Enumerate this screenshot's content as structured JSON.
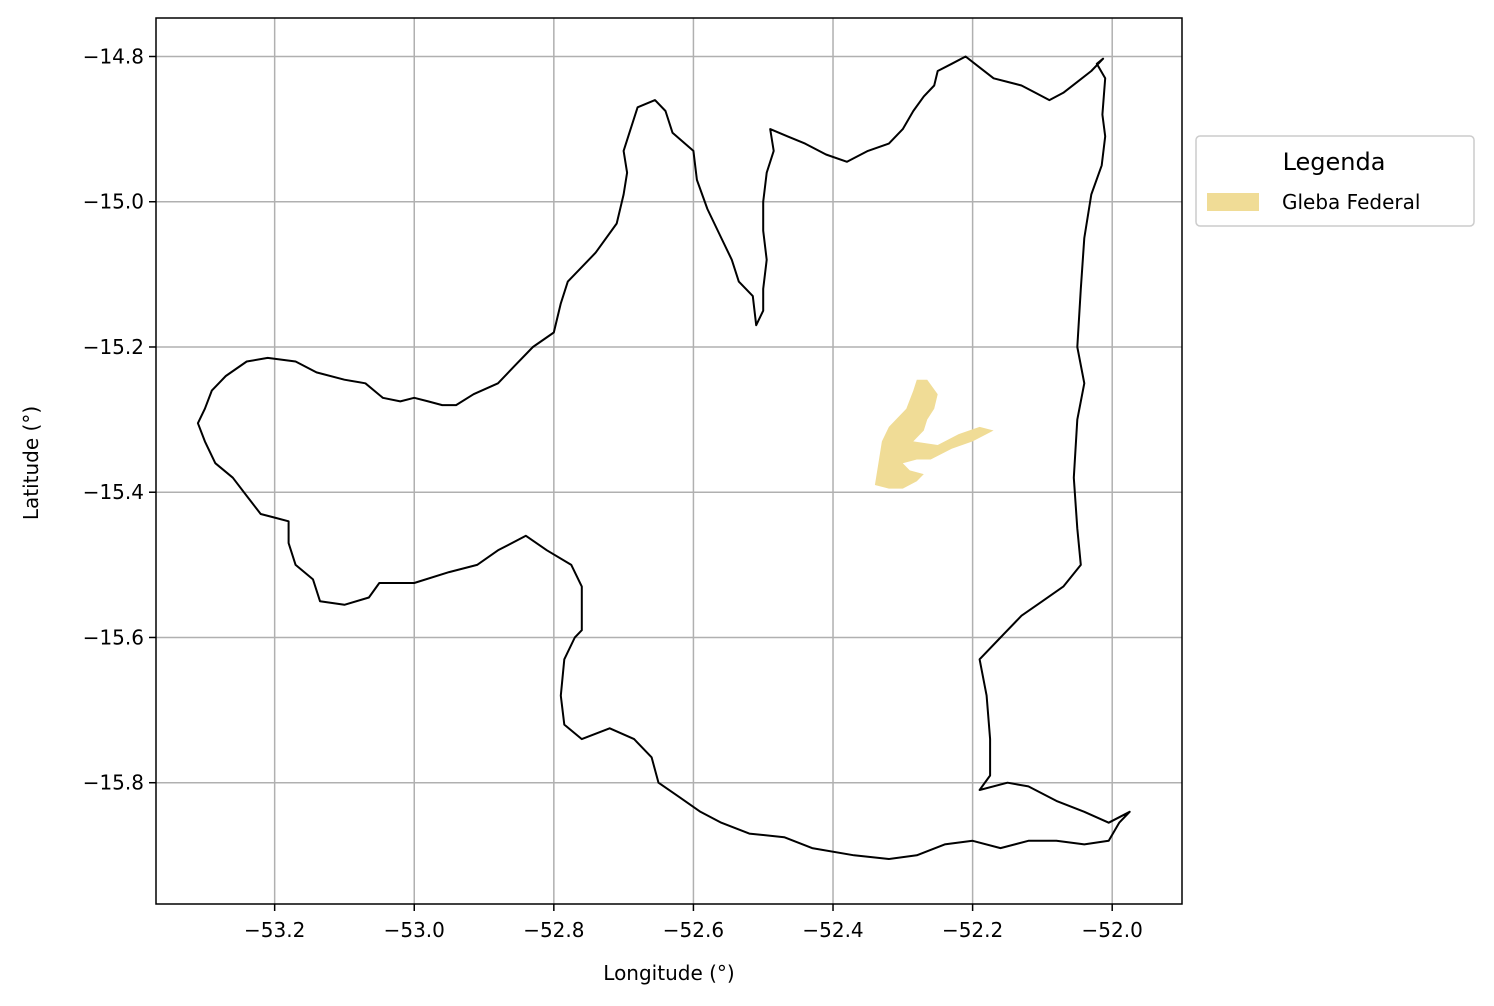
{
  "chart_data": {
    "type": "map",
    "xlabel": "Longitude (°)",
    "ylabel": "Latitude (°)",
    "xlim": [
      -53.37,
      -51.9
    ],
    "ylim": [
      -15.967,
      -14.747
    ],
    "xticks": [
      -53.2,
      -53.0,
      -52.8,
      -52.6,
      -52.4,
      -52.2,
      -52.0
    ],
    "xtick_labels": [
      "−53.2",
      "−53.0",
      "−52.8",
      "−52.6",
      "−52.4",
      "−52.2",
      "−52.0"
    ],
    "yticks": [
      -14.8,
      -15.0,
      -15.2,
      -15.4,
      -15.6,
      -15.8
    ],
    "ytick_labels": [
      "−14.8",
      "−15.0",
      "−15.2",
      "−15.4",
      "−15.6",
      "−15.8"
    ],
    "grid": true,
    "legend": {
      "title": "Legenda",
      "placement": "outside-right-top",
      "entries": [
        {
          "label": "Gleba Federal",
          "color": "#f0dc96"
        }
      ]
    },
    "boundary": {
      "stroke": "#000000",
      "fill": "none",
      "coords": [
        [
          -52.013,
          -14.803
        ],
        [
          -52.022,
          -14.81
        ],
        [
          -52.01,
          -14.83
        ],
        [
          -52.014,
          -14.88
        ],
        [
          -52.01,
          -14.91
        ],
        [
          -52.015,
          -14.95
        ],
        [
          -52.03,
          -14.99
        ],
        [
          -52.04,
          -15.05
        ],
        [
          -52.045,
          -15.12
        ],
        [
          -52.05,
          -15.2
        ],
        [
          -52.04,
          -15.25
        ],
        [
          -52.05,
          -15.3
        ],
        [
          -52.055,
          -15.38
        ],
        [
          -52.05,
          -15.45
        ],
        [
          -52.045,
          -15.5
        ],
        [
          -52.07,
          -15.53
        ],
        [
          -52.1,
          -15.55
        ],
        [
          -52.13,
          -15.57
        ],
        [
          -52.16,
          -15.6
        ],
        [
          -52.19,
          -15.63
        ],
        [
          -52.18,
          -15.68
        ],
        [
          -52.175,
          -15.74
        ],
        [
          -52.175,
          -15.79
        ],
        [
          -52.19,
          -15.81
        ],
        [
          -52.15,
          -15.8
        ],
        [
          -52.12,
          -15.805
        ],
        [
          -52.08,
          -15.825
        ],
        [
          -52.04,
          -15.84
        ],
        [
          -52.005,
          -15.855
        ],
        [
          -51.975,
          -15.84
        ],
        [
          -51.99,
          -15.855
        ],
        [
          -52.005,
          -15.88
        ],
        [
          -52.04,
          -15.885
        ],
        [
          -52.08,
          -15.88
        ],
        [
          -52.12,
          -15.88
        ],
        [
          -52.16,
          -15.89
        ],
        [
          -52.2,
          -15.88
        ],
        [
          -52.24,
          -15.885
        ],
        [
          -52.28,
          -15.9
        ],
        [
          -52.32,
          -15.905
        ],
        [
          -52.37,
          -15.9
        ],
        [
          -52.43,
          -15.89
        ],
        [
          -52.47,
          -15.875
        ],
        [
          -52.52,
          -15.87
        ],
        [
          -52.56,
          -15.855
        ],
        [
          -52.59,
          -15.84
        ],
        [
          -52.62,
          -15.82
        ],
        [
          -52.65,
          -15.8
        ],
        [
          -52.66,
          -15.765
        ],
        [
          -52.685,
          -15.74
        ],
        [
          -52.72,
          -15.725
        ],
        [
          -52.76,
          -15.74
        ],
        [
          -52.785,
          -15.72
        ],
        [
          -52.79,
          -15.68
        ],
        [
          -52.785,
          -15.63
        ],
        [
          -52.77,
          -15.6
        ],
        [
          -52.76,
          -15.59
        ],
        [
          -52.76,
          -15.53
        ],
        [
          -52.775,
          -15.5
        ],
        [
          -52.81,
          -15.48
        ],
        [
          -52.84,
          -15.46
        ],
        [
          -52.88,
          -15.48
        ],
        [
          -52.91,
          -15.5
        ],
        [
          -52.95,
          -15.51
        ],
        [
          -53.0,
          -15.525
        ],
        [
          -53.05,
          -15.525
        ],
        [
          -53.065,
          -15.545
        ],
        [
          -53.1,
          -15.555
        ],
        [
          -53.135,
          -15.55
        ],
        [
          -53.145,
          -15.52
        ],
        [
          -53.17,
          -15.5
        ],
        [
          -53.18,
          -15.47
        ],
        [
          -53.18,
          -15.44
        ],
        [
          -53.2,
          -15.435
        ],
        [
          -53.22,
          -15.43
        ],
        [
          -53.24,
          -15.405
        ],
        [
          -53.26,
          -15.38
        ],
        [
          -53.285,
          -15.36
        ],
        [
          -53.3,
          -15.33
        ],
        [
          -53.31,
          -15.305
        ],
        [
          -53.3,
          -15.285
        ],
        [
          -53.29,
          -15.26
        ],
        [
          -53.27,
          -15.24
        ],
        [
          -53.24,
          -15.22
        ],
        [
          -53.21,
          -15.215
        ],
        [
          -53.17,
          -15.22
        ],
        [
          -53.14,
          -15.235
        ],
        [
          -53.1,
          -15.245
        ],
        [
          -53.07,
          -15.25
        ],
        [
          -53.045,
          -15.27
        ],
        [
          -53.02,
          -15.275
        ],
        [
          -53.0,
          -15.27
        ],
        [
          -52.98,
          -15.275
        ],
        [
          -52.96,
          -15.28
        ],
        [
          -52.94,
          -15.28
        ],
        [
          -52.915,
          -15.265
        ],
        [
          -52.88,
          -15.25
        ],
        [
          -52.855,
          -15.225
        ],
        [
          -52.83,
          -15.2
        ],
        [
          -52.8,
          -15.18
        ],
        [
          -52.79,
          -15.14
        ],
        [
          -52.78,
          -15.11
        ],
        [
          -52.76,
          -15.09
        ],
        [
          -52.74,
          -15.07
        ],
        [
          -52.71,
          -15.03
        ],
        [
          -52.7,
          -14.99
        ],
        [
          -52.695,
          -14.96
        ],
        [
          -52.7,
          -14.93
        ],
        [
          -52.69,
          -14.9
        ],
        [
          -52.68,
          -14.87
        ],
        [
          -52.655,
          -14.86
        ],
        [
          -52.64,
          -14.875
        ],
        [
          -52.63,
          -14.905
        ],
        [
          -52.6,
          -14.93
        ],
        [
          -52.595,
          -14.97
        ],
        [
          -52.58,
          -15.01
        ],
        [
          -52.56,
          -15.05
        ],
        [
          -52.545,
          -15.08
        ],
        [
          -52.535,
          -15.11
        ],
        [
          -52.515,
          -15.13
        ],
        [
          -52.51,
          -15.17
        ],
        [
          -52.5,
          -15.15
        ],
        [
          -52.5,
          -15.12
        ],
        [
          -52.495,
          -15.08
        ],
        [
          -52.5,
          -15.04
        ],
        [
          -52.5,
          -15.0
        ],
        [
          -52.495,
          -14.96
        ],
        [
          -52.485,
          -14.93
        ],
        [
          -52.49,
          -14.9
        ],
        [
          -52.465,
          -14.91
        ],
        [
          -52.44,
          -14.92
        ],
        [
          -52.41,
          -14.935
        ],
        [
          -52.38,
          -14.945
        ],
        [
          -52.35,
          -14.93
        ],
        [
          -52.32,
          -14.92
        ],
        [
          -52.3,
          -14.9
        ],
        [
          -52.285,
          -14.875
        ],
        [
          -52.27,
          -14.855
        ],
        [
          -52.255,
          -14.84
        ],
        [
          -52.25,
          -14.82
        ],
        [
          -52.23,
          -14.81
        ],
        [
          -52.21,
          -14.8
        ],
        [
          -52.19,
          -14.815
        ],
        [
          -52.17,
          -14.83
        ],
        [
          -52.15,
          -14.835
        ],
        [
          -52.13,
          -14.84
        ],
        [
          -52.11,
          -14.85
        ],
        [
          -52.09,
          -14.86
        ],
        [
          -52.07,
          -14.85
        ],
        [
          -52.05,
          -14.835
        ],
        [
          -52.03,
          -14.82
        ],
        [
          -52.013,
          -14.803
        ]
      ]
    },
    "gleba_federal": {
      "label": "Gleba Federal",
      "fill": "#f0dc96",
      "coords": [
        [
          -52.34,
          -15.39
        ],
        [
          -52.335,
          -15.36
        ],
        [
          -52.33,
          -15.33
        ],
        [
          -52.32,
          -15.31
        ],
        [
          -52.295,
          -15.285
        ],
        [
          -52.285,
          -15.26
        ],
        [
          -52.28,
          -15.245
        ],
        [
          -52.265,
          -15.245
        ],
        [
          -52.25,
          -15.265
        ],
        [
          -52.255,
          -15.285
        ],
        [
          -52.265,
          -15.3
        ],
        [
          -52.27,
          -15.315
        ],
        [
          -52.285,
          -15.33
        ],
        [
          -52.25,
          -15.335
        ],
        [
          -52.22,
          -15.32
        ],
        [
          -52.19,
          -15.31
        ],
        [
          -52.17,
          -15.315
        ],
        [
          -52.2,
          -15.33
        ],
        [
          -52.23,
          -15.34
        ],
        [
          -52.26,
          -15.355
        ],
        [
          -52.28,
          -15.355
        ],
        [
          -52.3,
          -15.36
        ],
        [
          -52.29,
          -15.37
        ],
        [
          -52.27,
          -15.375
        ],
        [
          -52.28,
          -15.385
        ],
        [
          -52.3,
          -15.395
        ],
        [
          -52.32,
          -15.395
        ],
        [
          -52.34,
          -15.39
        ]
      ]
    }
  }
}
